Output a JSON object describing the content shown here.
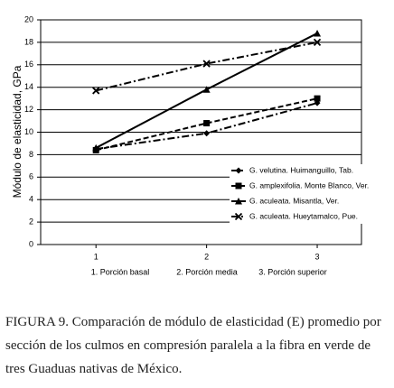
{
  "chart_data": {
    "type": "line",
    "ylabel": "Módulo de elasticidad, GPa",
    "x": [
      1,
      2,
      3
    ],
    "xlim": [
      0.5,
      3.4
    ],
    "xticks": [
      1,
      2,
      3
    ],
    "ylim": [
      0,
      20
    ],
    "yticks": [
      0,
      2,
      4,
      6,
      8,
      10,
      12,
      14,
      16,
      18,
      20
    ],
    "grid": true,
    "x_labels": [
      "1. Porción basal",
      "2. Porción media",
      "3. Porción superior"
    ],
    "legend": "lower right",
    "series": [
      {
        "name": "G. velutina. Huimanguillo, Tab.",
        "color": "#000000",
        "marker": "diamond",
        "dash": "dashdot",
        "values": [
          8.5,
          9.9,
          12.6
        ]
      },
      {
        "name": "G. amplexifolia. Monte Blanco, Ver.",
        "color": "#000000",
        "marker": "square",
        "dash": "dash",
        "values": [
          8.4,
          10.8,
          13.0
        ]
      },
      {
        "name": "G. aculeata. Misantla, Ver.",
        "color": "#000000",
        "marker": "triangle",
        "dash": "solid",
        "values": [
          8.6,
          13.8,
          18.8
        ]
      },
      {
        "name": "G. aculeata. Hueytamalco, Pue.",
        "color": "#000000",
        "marker": "x",
        "dash": "dashdot",
        "values": [
          13.7,
          16.1,
          18.0
        ]
      }
    ]
  },
  "caption": "FIGURA 9. Comparación de módulo de elasticidad (E) promedio por sección de los culmos en compresión paralela a la fibra en verde de tres Guaduas nativas de México."
}
